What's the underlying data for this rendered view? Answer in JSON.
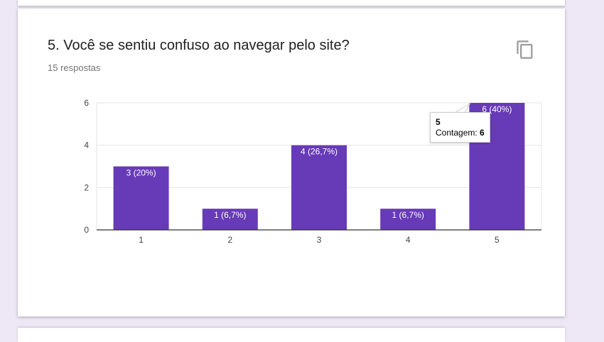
{
  "question": {
    "title": "5. Você se sentiu confuso ao navegar pelo site?",
    "response_count": "15 respostas",
    "copy_icon": "copy-icon"
  },
  "tooltip": {
    "category": "5",
    "label": "Contagem:",
    "value": "6"
  },
  "colors": {
    "bar": "#673ab7",
    "background": "#ede7f6",
    "card": "#ffffff"
  },
  "chart_data": {
    "type": "bar",
    "categories": [
      "1",
      "2",
      "3",
      "4",
      "5"
    ],
    "values": [
      3,
      1,
      4,
      1,
      6
    ],
    "data_labels": [
      "3 (20%)",
      "1 (6,7%)",
      "4 (26,7%)",
      "1 (6,7%)",
      "6 (40%)"
    ],
    "yticks": [
      0,
      2,
      4,
      6
    ],
    "ylim": [
      0,
      6
    ],
    "grid": true,
    "legend": "none"
  }
}
